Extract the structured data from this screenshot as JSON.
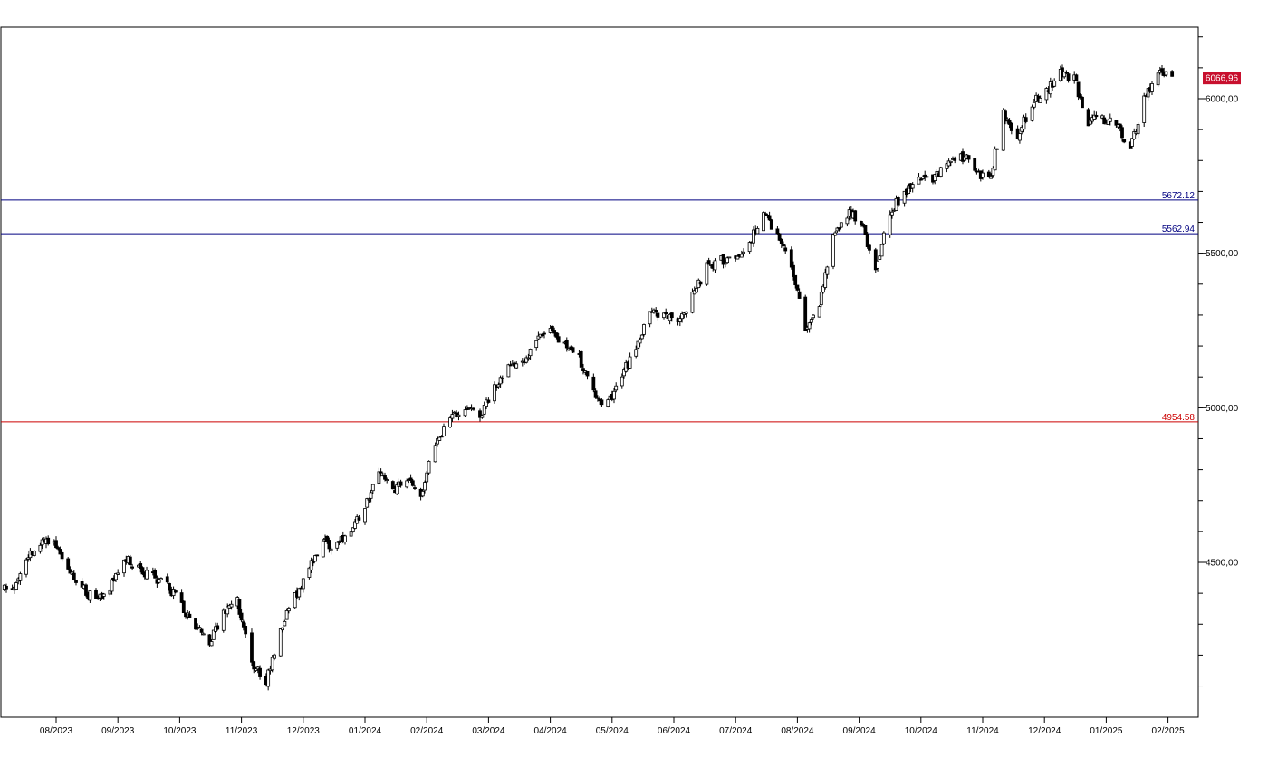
{
  "chart_data": {
    "type": "candlestick",
    "x_tick_labels": [
      "08/2023",
      "09/2023",
      "10/2023",
      "11/2023",
      "12/2023",
      "01/2024",
      "02/2024",
      "03/2024",
      "04/2024",
      "05/2024",
      "06/2024",
      "07/2024",
      "08/2024",
      "09/2024",
      "10/2024",
      "11/2024",
      "12/2024",
      "01/2025",
      "02/2025"
    ],
    "y_tick_labels": [
      "6000,00",
      "5500,00",
      "5000,00",
      "4500,00"
    ],
    "y_ticks": [
      6000,
      5500,
      5000,
      4500
    ],
    "y_minor_step": 100,
    "ylim": [
      4095,
      6335
    ],
    "x_range": [
      "2023-07-03",
      "2025-02-07"
    ],
    "last_value_label": "6066,96",
    "last_value": 6066.96,
    "horizontal_lines": [
      {
        "label": "5672.12",
        "value": 5672.12,
        "color": "#000080"
      },
      {
        "label": "5562.94",
        "value": 5562.94,
        "color": "#000080"
      },
      {
        "label": "4954.58",
        "value": 4954.58,
        "color": "#cc0000"
      }
    ],
    "series": [
      {
        "values": [
          [
            "2023-07-03",
            4430
          ],
          [
            "2023-07-10",
            4410
          ],
          [
            "2023-07-17",
            4520
          ],
          [
            "2023-07-24",
            4560
          ],
          [
            "2023-07-31",
            4570
          ],
          [
            "2023-08-07",
            4480
          ],
          [
            "2023-08-14",
            4420
          ],
          [
            "2023-08-21",
            4370
          ],
          [
            "2023-08-28",
            4420
          ],
          [
            "2023-09-04",
            4510
          ],
          [
            "2023-09-11",
            4480
          ],
          [
            "2023-09-18",
            4450
          ],
          [
            "2023-09-25",
            4430
          ],
          [
            "2023-10-02",
            4360
          ],
          [
            "2023-10-09",
            4300
          ],
          [
            "2023-10-16",
            4240
          ],
          [
            "2023-10-23",
            4340
          ],
          [
            "2023-10-30",
            4370
          ],
          [
            "2023-11-06",
            4170
          ],
          [
            "2023-11-13",
            4110
          ],
          [
            "2023-11-20",
            4290
          ],
          [
            "2023-11-27",
            4390
          ],
          [
            "2023-12-04",
            4490
          ],
          [
            "2023-12-11",
            4560
          ],
          [
            "2023-12-18",
            4560
          ],
          [
            "2023-12-25",
            4590
          ],
          [
            "2024-01-01",
            4690
          ],
          [
            "2024-01-08",
            4780
          ],
          [
            "2024-01-15",
            4730
          ],
          [
            "2024-01-22",
            4780
          ],
          [
            "2024-01-29",
            4720
          ],
          [
            "2024-02-05",
            4890
          ],
          [
            "2024-02-12",
            4960
          ],
          [
            "2024-02-19",
            5010
          ],
          [
            "2024-02-26",
            4980
          ],
          [
            "2024-03-04",
            5070
          ],
          [
            "2024-03-11",
            5130
          ],
          [
            "2024-03-18",
            5150
          ],
          [
            "2024-03-25",
            5220
          ],
          [
            "2024-04-01",
            5240
          ],
          [
            "2024-04-08",
            5200
          ],
          [
            "2024-04-15",
            5160
          ],
          [
            "2024-04-22",
            5050
          ],
          [
            "2024-04-29",
            5010
          ],
          [
            "2024-05-06",
            5100
          ],
          [
            "2024-05-13",
            5200
          ],
          [
            "2024-05-20",
            5310
          ],
          [
            "2024-05-27",
            5290
          ],
          [
            "2024-06-03",
            5280
          ],
          [
            "2024-06-10",
            5360
          ],
          [
            "2024-06-17",
            5460
          ],
          [
            "2024-06-24",
            5480
          ],
          [
            "2024-07-01",
            5470
          ],
          [
            "2024-07-08",
            5530
          ],
          [
            "2024-07-15",
            5640
          ],
          [
            "2024-07-22",
            5560
          ],
          [
            "2024-07-29",
            5460
          ],
          [
            "2024-08-05",
            5250
          ],
          [
            "2024-08-12",
            5340
          ],
          [
            "2024-08-19",
            5550
          ],
          [
            "2024-08-26",
            5630
          ],
          [
            "2024-09-02",
            5600
          ],
          [
            "2024-09-09",
            5430
          ],
          [
            "2024-09-16",
            5640
          ],
          [
            "2024-09-23",
            5700
          ],
          [
            "2024-09-30",
            5740
          ],
          [
            "2024-10-07",
            5740
          ],
          [
            "2024-10-14",
            5790
          ],
          [
            "2024-10-21",
            5820
          ],
          [
            "2024-10-28",
            5780
          ],
          [
            "2024-11-04",
            5730
          ],
          [
            "2024-11-11",
            5950
          ],
          [
            "2024-11-18",
            5880
          ],
          [
            "2024-11-25",
            5980
          ],
          [
            "2024-12-02",
            6030
          ],
          [
            "2024-12-09",
            6080
          ],
          [
            "2024-12-16",
            6060
          ],
          [
            "2024-12-23",
            5930
          ],
          [
            "2024-12-30",
            5930
          ],
          [
            "2025-01-06",
            5920
          ],
          [
            "2025-01-13",
            5840
          ],
          [
            "2025-01-20",
            6000
          ],
          [
            "2025-01-27",
            6080
          ],
          [
            "2025-02-03",
            6066.96
          ]
        ]
      }
    ]
  }
}
